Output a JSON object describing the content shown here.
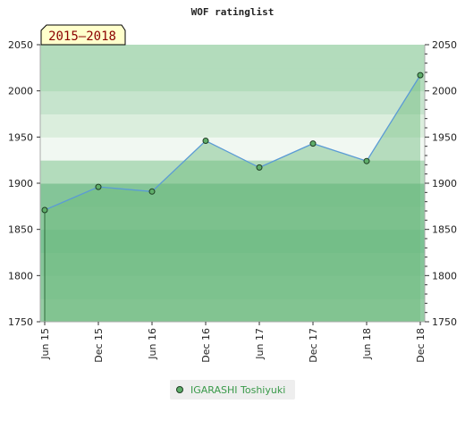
{
  "chart_data": {
    "type": "area",
    "title": "WOF ratinglist",
    "period_label": "2015–2018",
    "categories": [
      "Jun 15",
      "Dec 15",
      "Jun 16",
      "Dec 16",
      "Jun 17",
      "Dec 17",
      "Jun 18",
      "Dec 18"
    ],
    "series": [
      {
        "name": "IGARASHI Toshiyuki",
        "values": [
          1871,
          1896,
          1891,
          1946,
          1917,
          1943,
          1924,
          2017
        ]
      }
    ],
    "ylim": [
      1750,
      2050
    ],
    "yticks": [
      1750,
      1800,
      1850,
      1900,
      1950,
      2000,
      2050
    ],
    "grid": true,
    "legend_position": "bottom",
    "colors": {
      "line": "#5b9bd5",
      "area": "#6dbb7c",
      "marker": "#5fae6a",
      "band_dark": "#7ac293",
      "band_light": "#f1f8f2"
    }
  }
}
